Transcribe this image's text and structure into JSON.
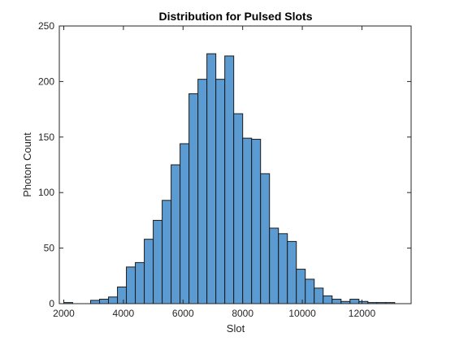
{
  "chart_data": {
    "type": "bar",
    "title": "Distribution for Pulsed Slots",
    "xlabel": "Slot",
    "ylabel": "Photon Count",
    "xlim": [
      1850,
      13650
    ],
    "ylim": [
      0,
      250
    ],
    "xticks": [
      2000,
      4000,
      6000,
      8000,
      10000,
      12000
    ],
    "yticks": [
      0,
      50,
      100,
      150,
      200,
      250
    ],
    "bin_edges": [
      2000,
      2300,
      2600,
      2900,
      3200,
      3500,
      3800,
      4100,
      4400,
      4700,
      5000,
      5300,
      5600,
      5900,
      6200,
      6500,
      6800,
      7100,
      7400,
      7700,
      8000,
      8300,
      8600,
      8900,
      9200,
      9500,
      9800,
      10100,
      10400,
      10700,
      11000,
      11300,
      11600,
      11900,
      12200,
      12500,
      12800,
      13100
    ],
    "values": [
      1,
      0,
      0,
      3,
      4,
      6,
      15,
      33,
      37,
      58,
      75,
      93,
      125,
      144,
      189,
      202,
      225,
      202,
      223,
      171,
      149,
      148,
      117,
      68,
      63,
      56,
      31,
      22,
      14,
      7,
      4,
      2,
      4,
      2,
      1,
      1,
      1
    ],
    "bar_color": "#5b9bd2",
    "edge_color": "#1a1a1a",
    "grid": false
  }
}
